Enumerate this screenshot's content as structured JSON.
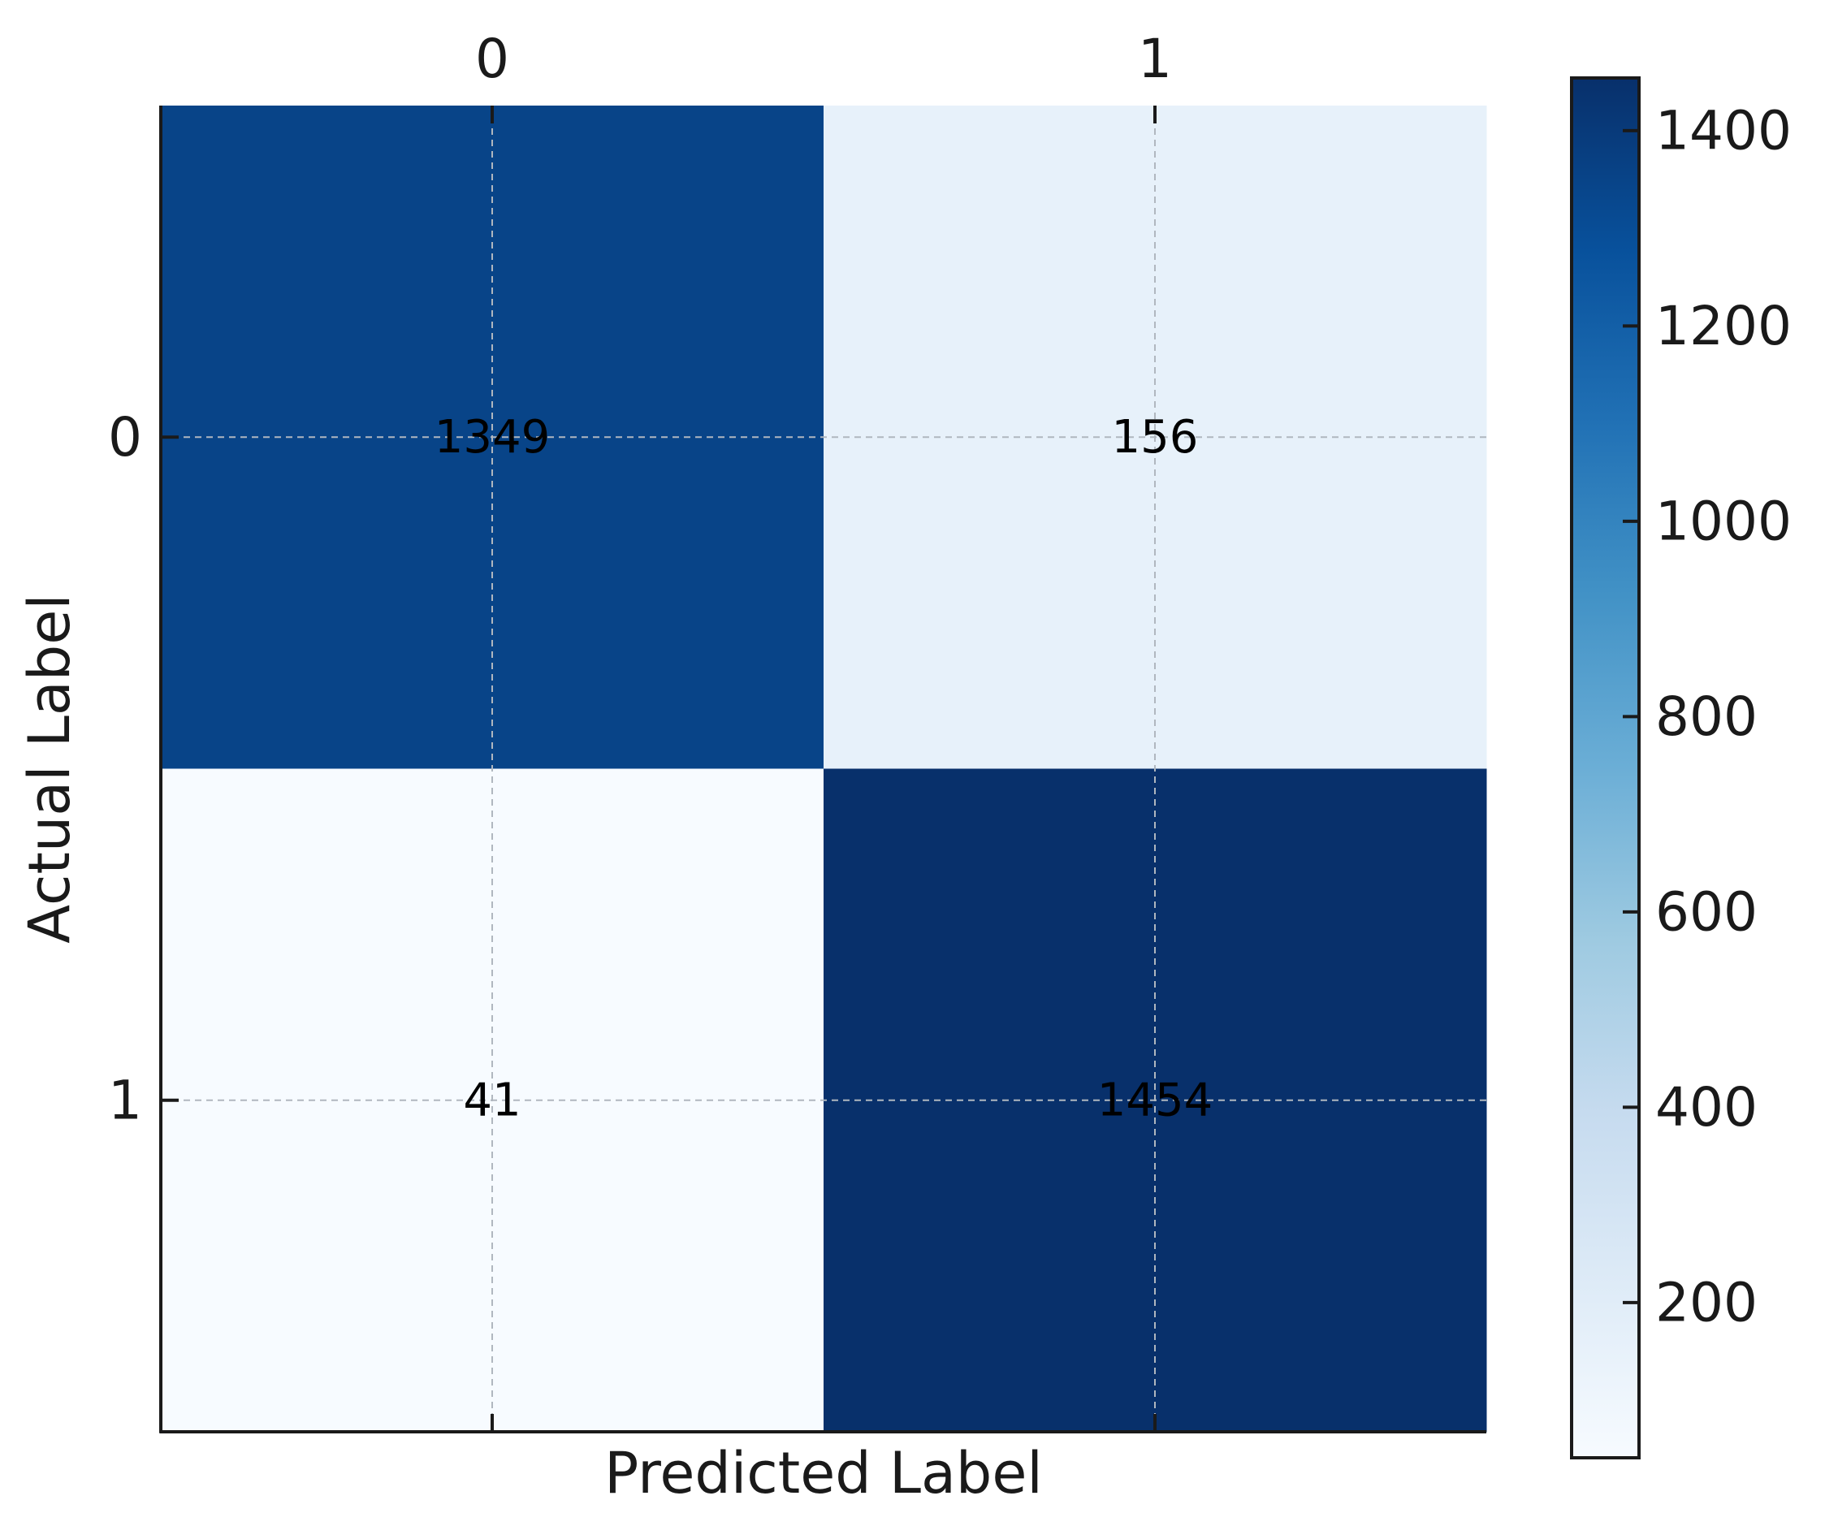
{
  "chart_data": {
    "type": "heatmap",
    "title": "",
    "xlabel": "Predicted Label",
    "ylabel": "Actual Label",
    "x_tick_labels": [
      "0",
      "1"
    ],
    "y_tick_labels": [
      "0",
      "1"
    ],
    "x_tick_position": "top",
    "values": [
      [
        1349,
        156
      ],
      [
        41,
        1454
      ]
    ],
    "cell_labels": [
      [
        "1349",
        "156"
      ],
      [
        "41",
        "1454"
      ]
    ],
    "grid": true,
    "colormap": "Blues",
    "colorbar": {
      "min": 41,
      "max": 1454,
      "ticks": [
        200,
        400,
        600,
        800,
        1000,
        1200,
        1400
      ],
      "tick_labels": [
        "200",
        "400",
        "600",
        "800",
        "1000",
        "1200",
        "1400"
      ],
      "placement": "right"
    }
  }
}
